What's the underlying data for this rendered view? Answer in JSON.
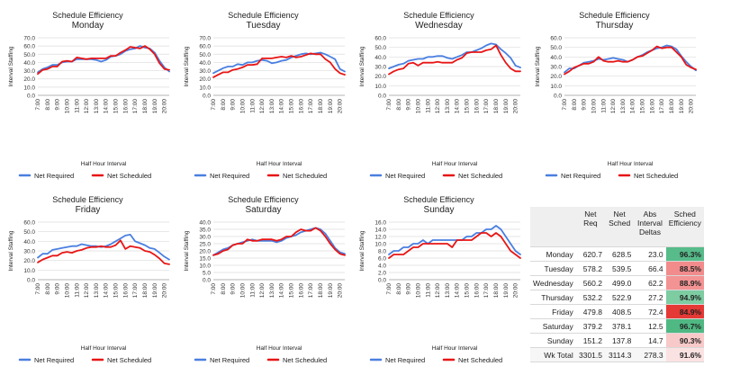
{
  "chart_data": [
    {
      "type": "line",
      "title": "Schedule Efficiency",
      "subtitle": "Monday",
      "xlabel": "Half Hour Interval",
      "ylabel": "Interval Staffing",
      "ylim": [
        0,
        70
      ],
      "ytick_labels": [
        "0.0",
        "10.0",
        "20.0",
        "30.0",
        "40.0",
        "50.0",
        "60.0",
        "70.0"
      ],
      "x": [
        "7:00",
        "7:30",
        "8:00",
        "8:30",
        "9:00",
        "9:30",
        "10:00",
        "10:30",
        "11:00",
        "11:30",
        "12:00",
        "12:30",
        "13:00",
        "13:30",
        "14:00",
        "14:30",
        "15:00",
        "15:30",
        "16:00",
        "16:30",
        "17:00",
        "17:30",
        "18:00",
        "18:30",
        "19:00",
        "19:30",
        "20:00",
        "20:30"
      ],
      "series": [
        {
          "name": "Net Required",
          "color": "#4a7fe0",
          "values": [
            28,
            32,
            34,
            37,
            37,
            40,
            41,
            41,
            44,
            44,
            44,
            44,
            43,
            41,
            43,
            47,
            48,
            50,
            54,
            56,
            57,
            60,
            58,
            57,
            52,
            42,
            34,
            29
          ]
        },
        {
          "name": "Net Scheduled",
          "color": "#e81515",
          "values": [
            26,
            31,
            32,
            35,
            35,
            41,
            42,
            41,
            46,
            45,
            44,
            45,
            45,
            45,
            45,
            48,
            48,
            52,
            55,
            59,
            58,
            57,
            60,
            56,
            50,
            39,
            32,
            31
          ]
        }
      ]
    },
    {
      "type": "line",
      "title": "Schedule Efficiency",
      "subtitle": "Tuesday",
      "xlabel": "Half Hour Interval",
      "ylabel": "Interval Staffing",
      "ylim": [
        0,
        70
      ],
      "ytick_labels": [
        "0.0",
        "10.0",
        "20.0",
        "30.0",
        "40.0",
        "50.0",
        "60.0",
        "70.0"
      ],
      "x": [
        "7:00",
        "7:30",
        "8:00",
        "8:30",
        "9:00",
        "9:30",
        "10:00",
        "10:30",
        "11:00",
        "11:30",
        "12:00",
        "12:30",
        "13:00",
        "13:30",
        "14:00",
        "14:30",
        "15:00",
        "15:30",
        "16:00",
        "16:30",
        "17:00",
        "17:30",
        "18:00",
        "18:30",
        "19:00",
        "19:30",
        "20:00",
        "20:30"
      ],
      "series": [
        {
          "name": "Net Required",
          "color": "#4a7fe0",
          "values": [
            27,
            30,
            33,
            35,
            35,
            38,
            37,
            40,
            40,
            42,
            43,
            42,
            39,
            40,
            42,
            43,
            46,
            48,
            50,
            51,
            50,
            51,
            52,
            50,
            47,
            44,
            32,
            29
          ]
        },
        {
          "name": "Net Scheduled",
          "color": "#e81515",
          "values": [
            22,
            25,
            28,
            28,
            31,
            32,
            34,
            37,
            37,
            38,
            45,
            45,
            45,
            46,
            47,
            46,
            48,
            46,
            47,
            49,
            51,
            50,
            50,
            44,
            40,
            32,
            27,
            25
          ]
        }
      ]
    },
    {
      "type": "line",
      "title": "Schedule Efficiency",
      "subtitle": "Wednesday",
      "xlabel": "Half Hour Interval",
      "ylabel": "Interval Staffing",
      "ylim": [
        0,
        60
      ],
      "ytick_labels": [
        "0.0",
        "10.0",
        "20.0",
        "30.0",
        "40.0",
        "50.0",
        "60.0"
      ],
      "x": [
        "7:00",
        "7:30",
        "8:00",
        "8:30",
        "9:00",
        "9:30",
        "10:00",
        "10:30",
        "11:00",
        "11:30",
        "12:00",
        "12:30",
        "13:00",
        "13:30",
        "14:00",
        "14:30",
        "15:00",
        "15:30",
        "16:00",
        "16:30",
        "17:00",
        "17:30",
        "18:00",
        "18:30",
        "19:00",
        "19:30",
        "20:00",
        "20:30"
      ],
      "series": [
        {
          "name": "Net Required",
          "color": "#4a7fe0",
          "values": [
            28,
            30,
            32,
            33,
            36,
            37,
            38,
            38,
            40,
            40,
            41,
            41,
            39,
            38,
            40,
            42,
            45,
            45,
            47,
            49,
            52,
            54,
            53,
            48,
            44,
            39,
            31,
            29
          ]
        },
        {
          "name": "Net Scheduled",
          "color": "#e81515",
          "values": [
            22,
            25,
            27,
            28,
            33,
            34,
            31,
            34,
            34,
            34,
            35,
            34,
            34,
            34,
            37,
            39,
            44,
            45,
            45,
            45,
            47,
            48,
            52,
            42,
            34,
            28,
            25,
            25
          ]
        }
      ]
    },
    {
      "type": "line",
      "title": "Schedule Efficiency",
      "subtitle": "Thursday",
      "xlabel": "Half Hour Interval",
      "ylabel": "Interval Staffing",
      "ylim": [
        0,
        60
      ],
      "ytick_labels": [
        "0.0",
        "10.0",
        "20.0",
        "30.0",
        "40.0",
        "50.0",
        "60.0"
      ],
      "x": [
        "7:00",
        "7:30",
        "8:00",
        "8:30",
        "9:00",
        "9:30",
        "10:00",
        "10:30",
        "11:00",
        "11:30",
        "12:00",
        "12:30",
        "13:00",
        "13:30",
        "14:00",
        "14:30",
        "15:00",
        "15:30",
        "16:00",
        "16:30",
        "17:00",
        "17:30",
        "18:00",
        "18:30",
        "19:00",
        "19:30",
        "20:00",
        "20:30"
      ],
      "series": [
        {
          "name": "Net Required",
          "color": "#4a7fe0",
          "values": [
            24,
            28,
            28,
            31,
            34,
            35,
            36,
            38,
            37,
            38,
            39,
            38,
            37,
            35,
            37,
            40,
            42,
            45,
            47,
            49,
            50,
            52,
            51,
            48,
            41,
            35,
            30,
            26
          ]
        },
        {
          "name": "Net Scheduled",
          "color": "#e81515",
          "values": [
            22,
            25,
            29,
            31,
            33,
            33,
            35,
            40,
            36,
            35,
            35,
            36,
            35,
            35,
            37,
            40,
            41,
            44,
            47,
            51,
            49,
            50,
            50,
            45,
            40,
            32,
            29,
            27
          ]
        }
      ]
    },
    {
      "type": "line",
      "title": "Schedule Efficiency",
      "subtitle": "Friday",
      "xlabel": "Half Hour Interval",
      "ylabel": "Interval Staffing",
      "ylim": [
        0,
        60
      ],
      "ytick_labels": [
        "0.0",
        "10.0",
        "20.0",
        "30.0",
        "40.0",
        "50.0",
        "60.0"
      ],
      "x": [
        "7:00",
        "7:30",
        "8:00",
        "8:30",
        "9:00",
        "9:30",
        "10:00",
        "10:30",
        "11:00",
        "11:30",
        "12:00",
        "12:30",
        "13:00",
        "13:30",
        "14:00",
        "14:30",
        "15:00",
        "15:30",
        "16:00",
        "16:30",
        "17:00",
        "17:30",
        "18:00",
        "18:30",
        "19:00",
        "19:30",
        "20:00",
        "20:30"
      ],
      "series": [
        {
          "name": "Net Required",
          "color": "#4a7fe0",
          "values": [
            23,
            27,
            27,
            31,
            32,
            33,
            34,
            35,
            35,
            37,
            36,
            35,
            35,
            34,
            35,
            37,
            40,
            43,
            46,
            47,
            40,
            38,
            36,
            33,
            32,
            28,
            24,
            21
          ]
        },
        {
          "name": "Net Scheduled",
          "color": "#e81515",
          "values": [
            18,
            21,
            23,
            25,
            25,
            28,
            29,
            28,
            30,
            31,
            33,
            34,
            34,
            35,
            34,
            34,
            36,
            41,
            32,
            35,
            34,
            33,
            30,
            29,
            26,
            22,
            17,
            16
          ]
        }
      ]
    },
    {
      "type": "line",
      "title": "Schedule Efficiency",
      "subtitle": "Saturday",
      "xlabel": "Half Hour Interval",
      "ylabel": "Interval Staffing",
      "ylim": [
        0,
        40
      ],
      "ytick_labels": [
        "0.0",
        "5.0",
        "10.0",
        "15.0",
        "20.0",
        "25.0",
        "30.0",
        "35.0",
        "40.0"
      ],
      "x": [
        "7:00",
        "7:30",
        "8:00",
        "8:30",
        "9:00",
        "9:30",
        "10:00",
        "10:30",
        "11:00",
        "11:30",
        "12:00",
        "12:30",
        "13:00",
        "13:30",
        "14:00",
        "14:30",
        "15:00",
        "15:30",
        "16:00",
        "16:30",
        "17:00",
        "17:30",
        "18:00",
        "18:30",
        "19:00",
        "19:30",
        "20:00",
        "20:30"
      ],
      "series": [
        {
          "name": "Net Required",
          "color": "#4a7fe0",
          "values": [
            17,
            19,
            21,
            22,
            24,
            25,
            26,
            27,
            28,
            27,
            27,
            27,
            27,
            26,
            27,
            29,
            30,
            31,
            33,
            34,
            35,
            36,
            35,
            32,
            27,
            22,
            19,
            18
          ]
        },
        {
          "name": "Net Scheduled",
          "color": "#e81515",
          "values": [
            17,
            18,
            20,
            21,
            24,
            25,
            25,
            28,
            27,
            27,
            28,
            28,
            28,
            27,
            28,
            30,
            30,
            33,
            35,
            34,
            34,
            36,
            34,
            30,
            25,
            21,
            18,
            17
          ]
        }
      ]
    },
    {
      "type": "line",
      "title": "Schedule Efficiency",
      "subtitle": "Sunday",
      "xlabel": "Half Hour Interval",
      "ylabel": "Interval Staffing",
      "ylim": [
        0,
        16
      ],
      "ytick_labels": [
        "0.0",
        "2.0",
        "4.0",
        "6.0",
        "8.0",
        "10.0",
        "12.0",
        "14.0",
        "16.0"
      ],
      "x": [
        "7:00",
        "7:30",
        "8:00",
        "8:30",
        "9:00",
        "9:30",
        "10:00",
        "10:30",
        "11:00",
        "11:30",
        "12:00",
        "12:30",
        "13:00",
        "13:30",
        "14:00",
        "14:30",
        "15:00",
        "15:30",
        "16:00",
        "16:30",
        "17:00",
        "17:30",
        "18:00",
        "18:30",
        "19:00",
        "19:30",
        "20:00",
        "20:30"
      ],
      "series": [
        {
          "name": "Net Required",
          "color": "#4a7fe0",
          "values": [
            7,
            8,
            8,
            9,
            9,
            10,
            10,
            11,
            10,
            11,
            11,
            11,
            11,
            11,
            11,
            11,
            12,
            12,
            13,
            13,
            14,
            14,
            15,
            14,
            12,
            10,
            8,
            7
          ]
        },
        {
          "name": "Net Scheduled",
          "color": "#e81515",
          "values": [
            6,
            7,
            7,
            7,
            8,
            9,
            9,
            10,
            10,
            10,
            10,
            10,
            10,
            9,
            11,
            11,
            11,
            11,
            12,
            13,
            13,
            12,
            13,
            12,
            10,
            8,
            7,
            6
          ]
        }
      ]
    }
  ],
  "table": {
    "headers": [
      "",
      "Net Req",
      "Net Sched",
      "Abs Interval Deltas",
      "Sched Efficiency"
    ],
    "rows": [
      {
        "day": "Monday",
        "req": "620.7",
        "sched": "628.5",
        "delta": "23.0",
        "eff": "96.3%",
        "color": "#57bb8a"
      },
      {
        "day": "Tuesday",
        "req": "578.2",
        "sched": "539.5",
        "delta": "66.4",
        "eff": "88.5%",
        "color": "#f28b8b"
      },
      {
        "day": "Wednesday",
        "req": "560.2",
        "sched": "499.0",
        "delta": "62.2",
        "eff": "88.9%",
        "color": "#f39393"
      },
      {
        "day": "Thursday",
        "req": "532.2",
        "sched": "522.9",
        "delta": "27.2",
        "eff": "94.9%",
        "color": "#7dcca2"
      },
      {
        "day": "Friday",
        "req": "479.8",
        "sched": "408.5",
        "delta": "72.4",
        "eff": "84.9%",
        "color": "#e53935"
      },
      {
        "day": "Saturday",
        "req": "379.2",
        "sched": "378.1",
        "delta": "12.5",
        "eff": "96.7%",
        "color": "#4fb883"
      },
      {
        "day": "Sunday",
        "req": "151.2",
        "sched": "137.8",
        "delta": "14.7",
        "eff": "90.3%",
        "color": "#f8c9c9"
      }
    ],
    "total": {
      "day": "Wk Total",
      "req": "3301.5",
      "sched": "3114.3",
      "delta": "278.3",
      "eff": "91.6%",
      "color": "#fbe2e2"
    }
  }
}
